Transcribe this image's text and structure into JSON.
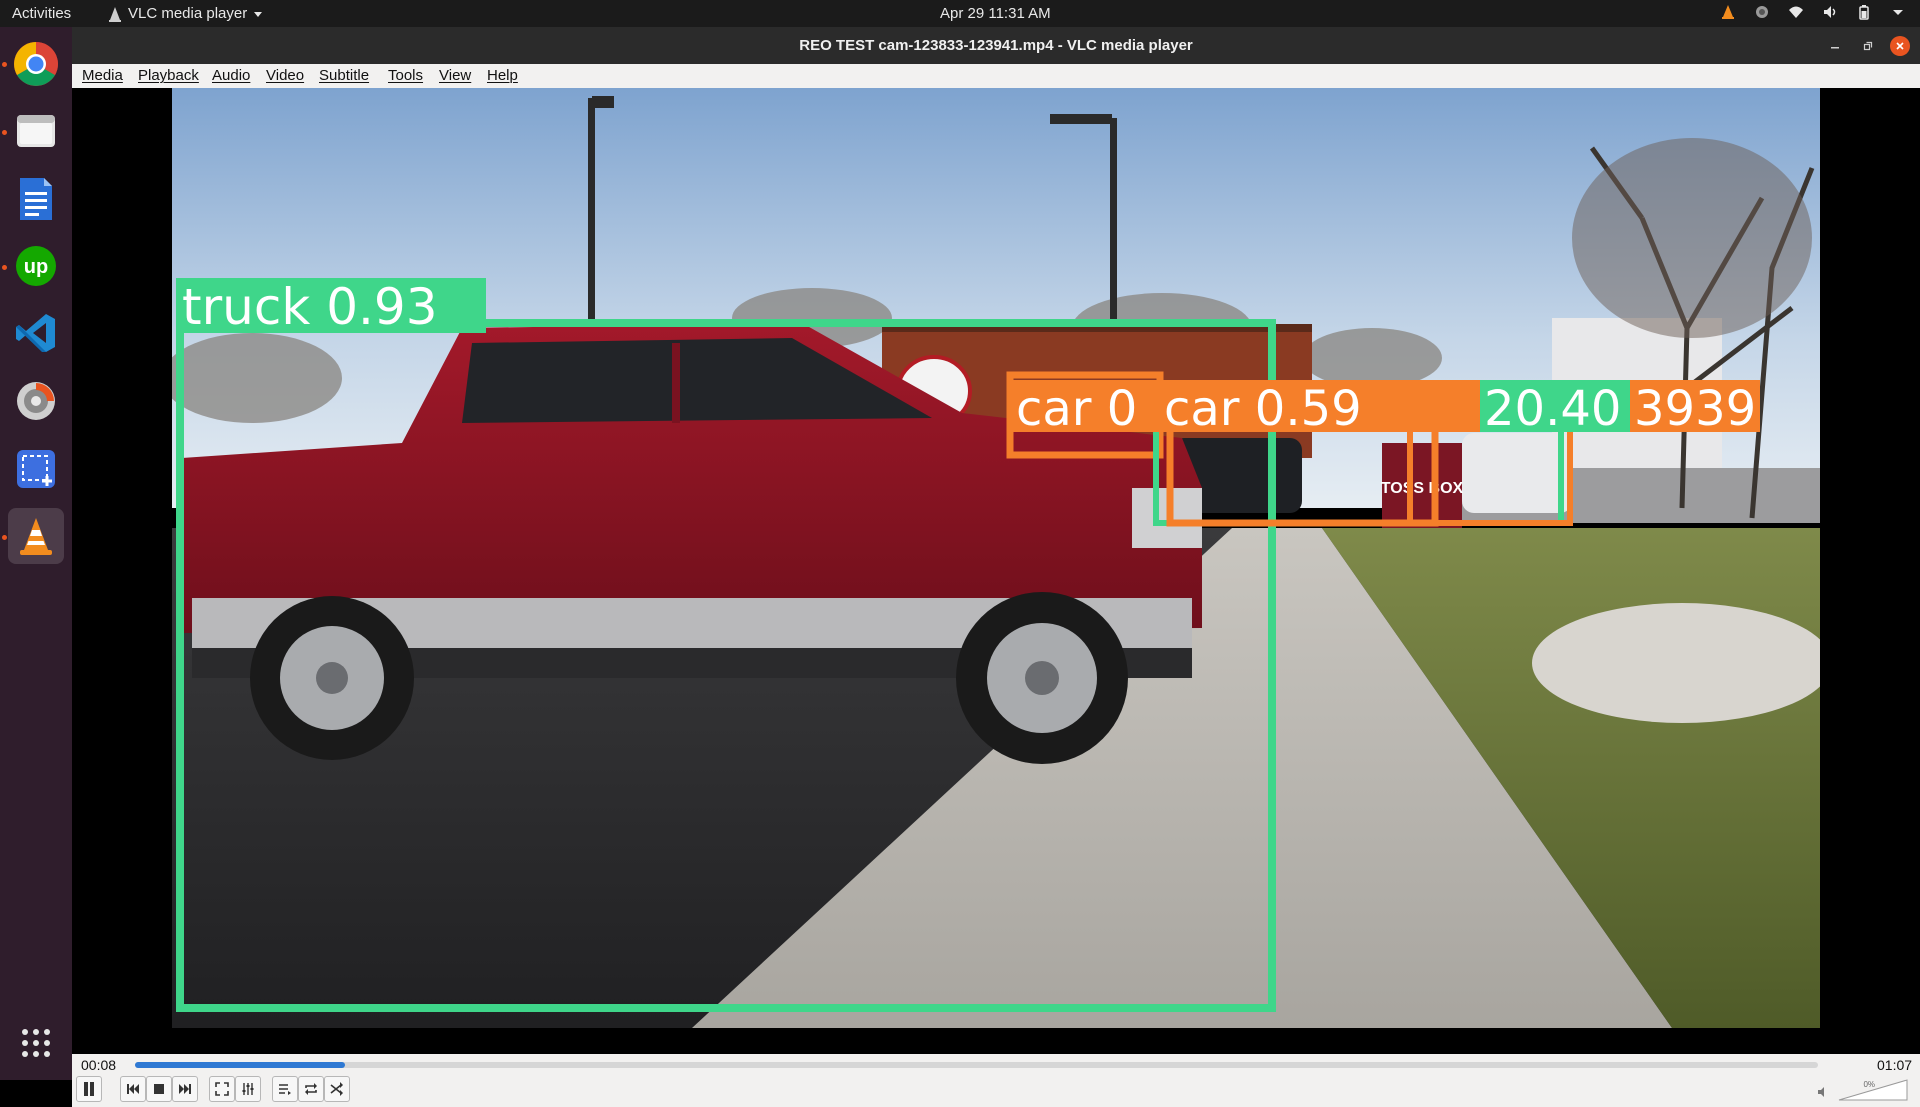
{
  "topbar": {
    "activities": "Activities",
    "app_menu": "VLC media player",
    "clock": "Apr 29  11:31 AM"
  },
  "dock": {
    "items": [
      {
        "name": "Google Chrome",
        "icon": "chrome-icon",
        "running": true
      },
      {
        "name": "Files",
        "icon": "files-icon",
        "running": true
      },
      {
        "name": "LibreOffice Writer",
        "icon": "writer-icon",
        "running": false
      },
      {
        "name": "Upwork",
        "icon": "upwork-icon",
        "running": true
      },
      {
        "name": "Visual Studio Code",
        "icon": "vscode-icon",
        "running": false
      },
      {
        "name": "Disk Installer",
        "icon": "installer-icon",
        "running": false
      },
      {
        "name": "Screenshot",
        "icon": "screenshot-icon",
        "running": false
      },
      {
        "name": "VLC media player",
        "icon": "vlc-icon",
        "running": true,
        "active": true
      }
    ],
    "show_apps": "grid-icon"
  },
  "window": {
    "title": "REO TEST cam-123833-123941.mp4 - VLC media player",
    "menu": [
      "Media",
      "Playback",
      "Audio",
      "Video",
      "Subtitle",
      "Tools",
      "View",
      "Help"
    ]
  },
  "detections": [
    {
      "label": "truck 0.93",
      "color": "#3fd68a"
    },
    {
      "label": "car 0",
      "color": "#f57f2a"
    },
    {
      "label": "car 0.59",
      "color": "#f57f2a"
    },
    {
      "label": "20.40",
      "color": "#3fd68a"
    },
    {
      "label": "3939",
      "color": "#f57f2a"
    }
  ],
  "sign_text": "TOSS BOX",
  "playback": {
    "elapsed": "00:08",
    "total": "01:07",
    "progress": 0.125,
    "volume_label": "0%"
  },
  "colors": {
    "accent": "#2f79d3",
    "vlc_orange": "#f28c1e",
    "box_green": "#3fd68a",
    "box_orange": "#f57f2a"
  }
}
